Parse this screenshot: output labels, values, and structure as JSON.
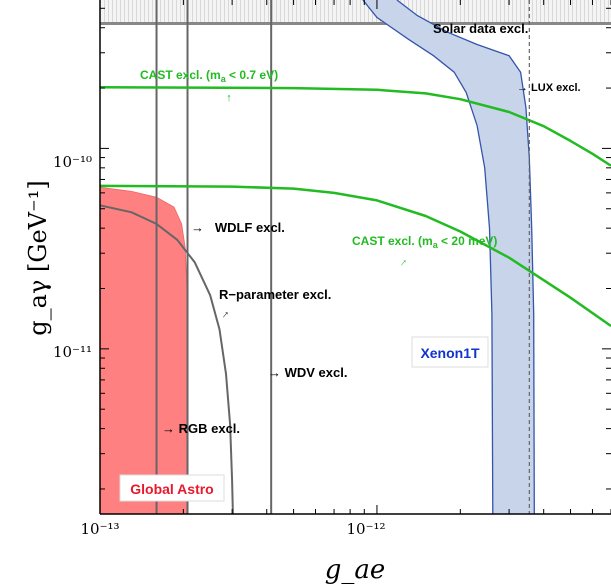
{
  "chart_data": {
    "type": "line",
    "title": "",
    "xlabel": "g_ae",
    "ylabel": "g_aγ [GeV⁻¹]",
    "xscale": "log",
    "yscale": "log",
    "xlim": [
      1e-13,
      7e-12
    ],
    "ylim": [
      1.5e-12,
      5.5e-10
    ],
    "x_ticks": [
      {
        "value": 1e-13,
        "label": "10⁻¹³"
      },
      {
        "value": 1e-12,
        "label": "10⁻¹²"
      }
    ],
    "y_ticks": [
      {
        "value": 1e-11,
        "label": "10⁻¹¹"
      },
      {
        "value": 1e-10,
        "label": "10⁻¹⁰"
      }
    ],
    "colors": {
      "axis": "#000000",
      "cast": "#22bb22",
      "grey_line": "#666666",
      "global_astro_fill": "#ff8080",
      "global_astro_label": "#e8192c",
      "xenon_fill": "#c8d4ea",
      "xenon_edge": "#3355aa",
      "xenon_label": "#1133cc",
      "lux_line": "#666666",
      "solar_band": "#888888"
    },
    "series": [
      {
        "name": "CAST excl. (m_a < 0.7 eV)",
        "kind": "cast",
        "points": [
          [
            1e-13,
            2.02e-10
          ],
          [
            5e-13,
            2e-10
          ],
          [
            1e-12,
            1.96e-10
          ],
          [
            1.5e-12,
            1.88e-10
          ],
          [
            2e-12,
            1.76e-10
          ],
          [
            3e-12,
            1.52e-10
          ],
          [
            4e-12,
            1.29e-10
          ],
          [
            5e-12,
            1.09e-10
          ],
          [
            6e-12,
            9.4e-11
          ],
          [
            7e-12,
            8.2e-11
          ]
        ]
      },
      {
        "name": "CAST excl. (m_a < 20 meV)",
        "kind": "cast",
        "points": [
          [
            1e-13,
            6.5e-11
          ],
          [
            3e-13,
            6.45e-11
          ],
          [
            5e-13,
            6.3e-11
          ],
          [
            7e-13,
            6e-11
          ],
          [
            1e-12,
            5.5e-11
          ],
          [
            1.5e-12,
            4.6e-11
          ],
          [
            2e-12,
            3.85e-11
          ],
          [
            3e-12,
            2.85e-11
          ],
          [
            4e-12,
            2.2e-11
          ],
          [
            5e-12,
            1.8e-11
          ],
          [
            7e-12,
            1.3e-11
          ]
        ]
      },
      {
        "name": "R-parameter excl.",
        "kind": "grey_curve",
        "points": [
          [
            1e-13,
            5.2e-11
          ],
          [
            1.3e-13,
            4.8e-11
          ],
          [
            1.6e-13,
            4.2e-11
          ],
          [
            1.9e-13,
            3.5e-11
          ],
          [
            2.2e-13,
            2.7e-11
          ],
          [
            2.5e-13,
            1.85e-11
          ],
          [
            2.7e-13,
            1.25e-11
          ],
          [
            2.85e-13,
            7.5e-12
          ],
          [
            2.95e-13,
            4.2e-12
          ],
          [
            3e-13,
            2.2e-12
          ],
          [
            3.02e-13,
            1.5e-12
          ]
        ]
      }
    ],
    "vertical_lines": [
      {
        "name": "RGB excl.",
        "x": 1.6e-13
      },
      {
        "name": "WDLF excl.",
        "x": 2.07e-13
      },
      {
        "name": "WDV excl.",
        "x": 4.15e-13
      }
    ],
    "lux": {
      "name": "LUX excl.",
      "x": 3.55e-12
    },
    "solar": {
      "name": "Solar data excl.",
      "y_min": 4.2e-10
    },
    "global_astro": {
      "name": "Global Astro",
      "points": [
        [
          1e-13,
          6.4e-11
        ],
        [
          1.3e-13,
          6.1e-11
        ],
        [
          1.6e-13,
          5.7e-11
        ],
        [
          1.85e-13,
          5.1e-11
        ],
        [
          1.97e-13,
          4.2e-11
        ],
        [
          2.03e-13,
          3.2e-11
        ],
        [
          2.06e-13,
          2e-11
        ],
        [
          2.07e-13,
          1.5e-12
        ],
        [
          1e-13,
          1.5e-12
        ]
      ]
    },
    "xenon1t": {
      "name": "Xenon1T",
      "left": [
        [
          8.9e-13,
          5.5e-10
        ],
        [
          1e-12,
          4.5e-10
        ],
        [
          1.3e-12,
          3.5e-10
        ],
        [
          1.6e-12,
          2.9e-10
        ],
        [
          1.9e-12,
          2.4e-10
        ],
        [
          2.1e-12,
          1.9e-10
        ],
        [
          2.3e-12,
          1.3e-10
        ],
        [
          2.45e-12,
          8e-11
        ],
        [
          2.55e-12,
          4e-11
        ],
        [
          2.6e-12,
          1.5e-11
        ],
        [
          2.62e-12,
          1.5e-12
        ]
      ],
      "right": [
        [
          1.18e-12,
          5.5e-10
        ],
        [
          1.4e-12,
          4.6e-10
        ],
        [
          1.8e-12,
          3.8e-10
        ],
        [
          2.3e-12,
          3.3e-10
        ],
        [
          3e-12,
          2.9e-10
        ],
        [
          3.3e-12,
          2.4e-10
        ],
        [
          3.45e-12,
          1.6e-10
        ],
        [
          3.55e-12,
          9e-11
        ],
        [
          3.62e-12,
          4e-11
        ],
        [
          3.68e-12,
          1.5e-11
        ],
        [
          3.7e-12,
          1.5e-12
        ]
      ]
    },
    "annotations": [
      {
        "id": "solar",
        "text": "Solar data excl."
      },
      {
        "id": "cast07",
        "text": "CAST excl. (m",
        "sub": "a",
        "tail": " < 0.7 eV)"
      },
      {
        "id": "cast20",
        "text": "CAST excl. (m",
        "sub": "a",
        "tail": " < 20 meV)"
      },
      {
        "id": "lux",
        "text": "→ LUX excl."
      },
      {
        "id": "wdlf",
        "text": "→   WDLF excl."
      },
      {
        "id": "rparam",
        "text": "R−parameter excl."
      },
      {
        "id": "wdv",
        "text": "→ WDV excl."
      },
      {
        "id": "rgb",
        "text": "→ RGB excl."
      },
      {
        "id": "xenon",
        "text": "Xenon1T"
      },
      {
        "id": "astro",
        "text": "Global Astro"
      }
    ]
  }
}
